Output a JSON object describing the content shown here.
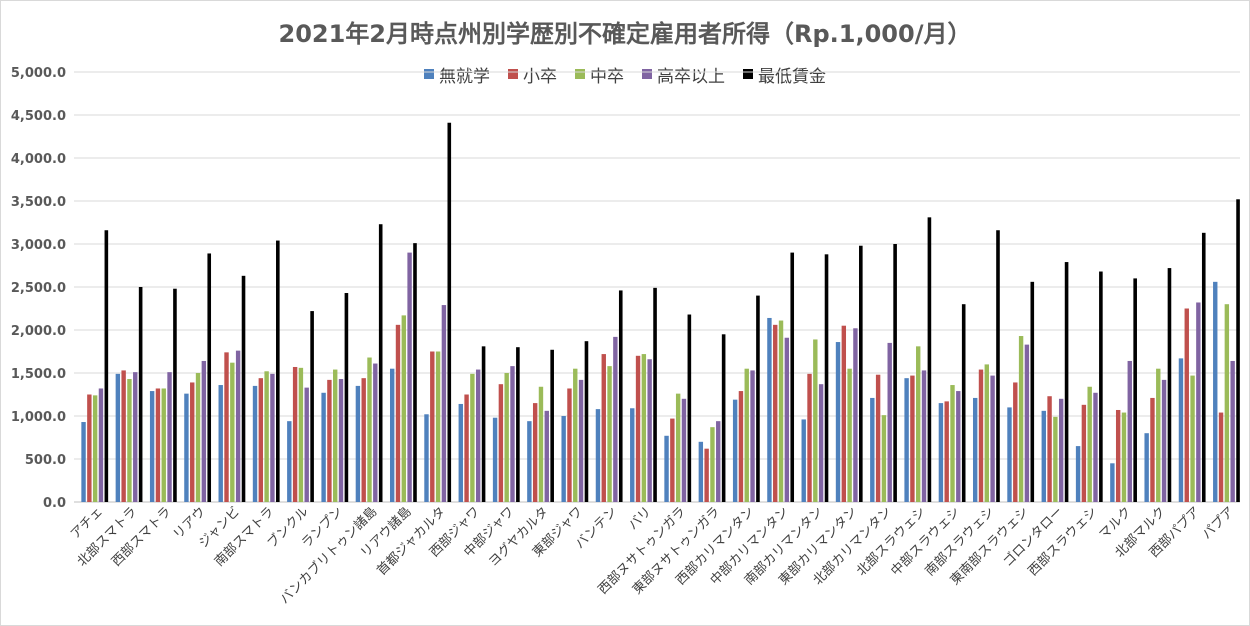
{
  "chart_data": {
    "type": "bar",
    "title": "2021年2月時点州別学歴別不確定雇用者所得（Rp.1,000/月）",
    "xlabel": "",
    "ylabel": "",
    "ylim": [
      0,
      5000
    ],
    "ytick_labels": [
      "0.0",
      "500.0",
      "1,000.0",
      "1,500.0",
      "2,000.0",
      "2,500.0",
      "3,000.0",
      "3,500.0",
      "4,000.0",
      "4,500.0",
      "5,000.0"
    ],
    "grid": true,
    "legend_position": "top-center",
    "categories": [
      "アチェ",
      "北部スマトラ",
      "西部スマトラ",
      "リアウ",
      "ジャンビ",
      "南部スマトラ",
      "ブンクル",
      "ランプン",
      "バンカブリトゥン諸島",
      "リアウ諸島",
      "首都ジャカルタ",
      "西部ジャワ",
      "中部ジャワ",
      "ヨグヤカルタ",
      "東部ジャワ",
      "バンテン",
      "バリ",
      "西部ヌサトゥンガラ",
      "東部ヌサトゥンガラ",
      "西部カリマンタン",
      "中部カリマンタン",
      "南部カリマンタン",
      "東部カリマンタン",
      "北部カリマンタン",
      "北部スラウェシ",
      "中部スラウェシ",
      "南部スラウェシ",
      "東南部スラウェシ",
      "ゴロンタロー",
      "西部スラウェシ",
      "マルク",
      "北部マルク",
      "西部パプア",
      "パプア"
    ],
    "series": [
      {
        "name": "無就学",
        "color": "#4f81bd",
        "values": [
          930,
          1490,
          1290,
          1260,
          1360,
          1350,
          940,
          1270,
          1350,
          1550,
          1020,
          1140,
          980,
          940,
          1000,
          1080,
          1090,
          770,
          700,
          1190,
          2140,
          960,
          1860,
          1210,
          1440,
          1150,
          1210,
          1100,
          1060,
          650,
          450,
          800,
          1670,
          2560
        ]
      },
      {
        "name": "小卒",
        "color": "#c0504d",
        "values": [
          1250,
          1530,
          1320,
          1390,
          1740,
          1440,
          1570,
          1420,
          1440,
          2060,
          1750,
          1250,
          1370,
          1150,
          1320,
          1720,
          1700,
          970,
          620,
          1290,
          2060,
          1490,
          2050,
          1480,
          1470,
          1170,
          1540,
          1390,
          1230,
          1130,
          1070,
          1210,
          2250,
          1040
        ]
      },
      {
        "name": "中卒",
        "color": "#9bbb59",
        "values": [
          1240,
          1430,
          1320,
          1500,
          1620,
          1520,
          1560,
          1540,
          1680,
          2170,
          1750,
          1490,
          1500,
          1340,
          1550,
          1580,
          1720,
          1260,
          870,
          1550,
          2110,
          1890,
          1550,
          1010,
          1810,
          1360,
          1600,
          1930,
          990,
          1340,
          1040,
          1550,
          1470,
          2300
        ]
      },
      {
        "name": "高卒以上",
        "color": "#8064a2",
        "values": [
          1320,
          1510,
          1510,
          1640,
          1760,
          1490,
          1330,
          1430,
          1610,
          2900,
          2290,
          1540,
          1580,
          1060,
          1420,
          1920,
          1660,
          1200,
          940,
          1530,
          1910,
          1370,
          2020,
          1850,
          1530,
          1290,
          1470,
          1830,
          1200,
          1270,
          1640,
          1420,
          2320,
          1640
        ]
      },
      {
        "name": "最低賃金",
        "color": "#000000",
        "values": [
          3160,
          2500,
          2480,
          2890,
          2630,
          3040,
          2220,
          2430,
          3230,
          3010,
          4410,
          1810,
          1800,
          1770,
          1870,
          2460,
          2490,
          2180,
          1950,
          2400,
          2900,
          2880,
          2980,
          3000,
          3310,
          2300,
          3160,
          2560,
          2790,
          2680,
          2600,
          2720,
          3130,
          3520
        ]
      }
    ]
  }
}
